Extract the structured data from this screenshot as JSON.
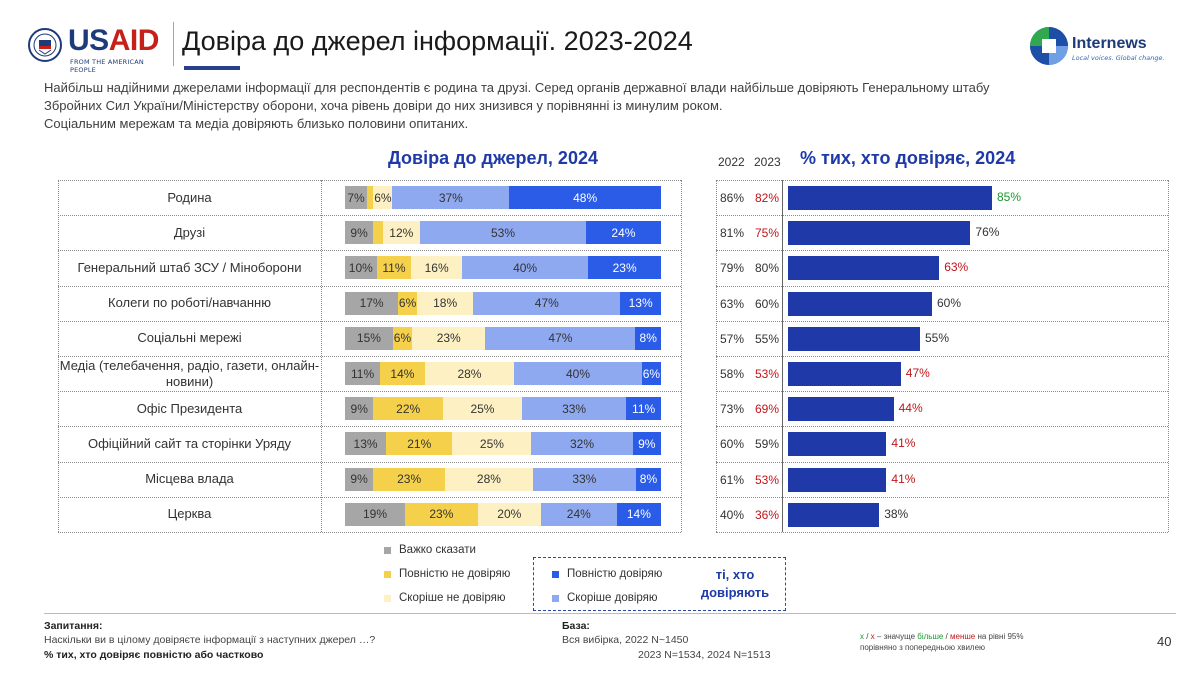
{
  "header": {
    "title": "Довіра до джерел інформації. 2023-2024",
    "usaid_logo_text": "USAID",
    "usaid_tagline": "FROM THE AMERICAN PEOPLE",
    "internews_logo_text": "Internews",
    "internews_tagline": "Local voices. Global change."
  },
  "intro": {
    "line1": "Найбільш надійними джерелами інформації для респондентів є родина та друзі. Серед органів державної влади найбільше довіряють Генеральному штабу",
    "line2": "Збройних Сил України/Міністерству оборони, хоча рівень довіри до них знизився у порівнянні із минулим роком.",
    "line3": "Соціальним мережам та медіа довіряють близько половини опитаних."
  },
  "colors": {
    "hard_to_say": "#a6a6a6",
    "fully_distrust": "#f5d04a",
    "rather_distrust": "#fdf1c4",
    "rather_trust": "#8fa9f0",
    "fully_trust": "#2a5ce8",
    "trust_bar": "#1f3aa8",
    "decrease": "#c0141a",
    "increase": "#1a9a2e"
  },
  "chart_data": [
    {
      "type": "bar",
      "stacked": true,
      "orientation": "horizontal",
      "title": "Довіра до джерел, 2024",
      "categories": [
        "Родина",
        "Друзі",
        "Генеральний штаб ЗСУ / Міноборони",
        "Колеги по роботі/навчанню",
        "Соціальні мережі",
        "Медіа (телебачення, радіо, газети, онлайн-новини)",
        "Офіс Президента",
        "Офіційний сайт та сторінки Уряду",
        "Місцева влада",
        "Церква"
      ],
      "series": [
        {
          "name": "Важко сказати",
          "values": [
            7,
            9,
            10,
            17,
            15,
            11,
            9,
            13,
            9,
            19
          ]
        },
        {
          "name": "Повністю не довіряю",
          "values": [
            2,
            3,
            11,
            6,
            6,
            14,
            22,
            21,
            23,
            23
          ]
        },
        {
          "name": "Скоріше не довіряю",
          "values": [
            6,
            12,
            16,
            18,
            23,
            28,
            25,
            25,
            28,
            20
          ]
        },
        {
          "name": "Скоріше довіряю",
          "values": [
            37,
            53,
            40,
            47,
            47,
            40,
            33,
            32,
            33,
            24
          ]
        },
        {
          "name": "Повністю довіряю",
          "values": [
            48,
            24,
            23,
            13,
            8,
            6,
            11,
            9,
            8,
            14
          ]
        }
      ],
      "data_labels": {
        "Важко сказати": [
          "7%",
          "9%",
          "10%",
          "17%",
          "15%",
          "11%",
          "9%",
          "13%",
          "9%",
          "19%"
        ],
        "Повністю не довіряю": [
          "",
          "",
          "11%",
          "6%",
          "6%",
          "14%",
          "22%",
          "21%",
          "23%",
          "23%"
        ],
        "Скоріше не довіряю": [
          "6%",
          "12%",
          "16%",
          "18%",
          "23%",
          "28%",
          "25%",
          "25%",
          "28%",
          "20%"
        ],
        "Скоріше довіряю": [
          "37%",
          "53%",
          "40%",
          "47%",
          "47%",
          "40%",
          "33%",
          "32%",
          "33%",
          "24%"
        ],
        "Повністю довіряю": [
          "48%",
          "24%",
          "23%",
          "13%",
          "8%",
          "6%",
          "11%",
          "9%",
          "8%",
          "14%"
        ]
      },
      "xlim": [
        0,
        100
      ],
      "legend": {
        "items": [
          "Важко сказати",
          "Повністю не довіряю",
          "Скоріше не довіряю",
          "Повністю довіряю",
          "Скоріше довіряю"
        ],
        "group_label": "ті, хто довіряють"
      }
    },
    {
      "type": "bar",
      "orientation": "horizontal",
      "title": "% тих, хто довіряє, 2024",
      "categories": [
        "Родина",
        "Друзі",
        "Генеральний штаб ЗСУ / Міноборони",
        "Колеги по роботі/навчанню",
        "Соціальні мережі",
        "Медіа (телебачення, радіо, газети, онлайн-новини)",
        "Офіс Президента",
        "Офіційний сайт та сторінки Уряду",
        "Місцева влада",
        "Церква"
      ],
      "values": [
        85,
        76,
        63,
        60,
        55,
        47,
        44,
        41,
        41,
        38
      ],
      "value_labels": [
        "85%",
        "76%",
        "63%",
        "60%",
        "55%",
        "47%",
        "44%",
        "41%",
        "41%",
        "38%"
      ],
      "change_vs_prev": [
        "up",
        "none",
        "down",
        "none",
        "none",
        "down",
        "down",
        "down",
        "down",
        "none"
      ],
      "xlim": [
        0,
        100
      ],
      "previous_years": {
        "headers": [
          "2022",
          "2023"
        ],
        "y2022": [
          "86%",
          "81%",
          "79%",
          "63%",
          "57%",
          "58%",
          "73%",
          "60%",
          "61%",
          "40%"
        ],
        "y2023": [
          "82%",
          "75%",
          "80%",
          "60%",
          "55%",
          "53%",
          "69%",
          "59%",
          "53%",
          "36%"
        ],
        "y2023_change": [
          "down",
          "down",
          "none",
          "none",
          "none",
          "down",
          "down",
          "none",
          "down",
          "down"
        ]
      }
    }
  ],
  "footer": {
    "question_title": "Запитання:",
    "question_text": "Наскільки ви в цілому довіряєте інформації з наступних джерел …?",
    "question_note": "% тих, хто довіряє повністю або частково",
    "base_title": "База:",
    "base_line1": "Вся вибірка, 2022  N~1450",
    "base_line2": "2023  N=1534, 2024 N=1513",
    "sig_more": "більше",
    "sig_less": "менше",
    "sig_x1": "x",
    "sig_sep": " / ",
    "sig_x2": "x",
    "sig_part1": " – значуще ",
    "sig_part2": " на рівні 95%",
    "sig_line2": "порівняно з попередньою хвилею",
    "page_number": "40"
  }
}
